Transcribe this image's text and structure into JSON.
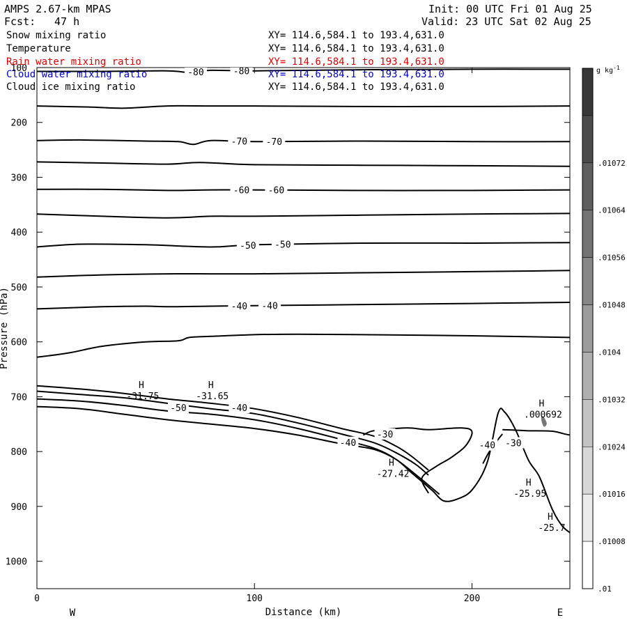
{
  "header": {
    "model": "AMPS 2.67-km MPAS",
    "forecast_label": "Fcst:",
    "forecast_value": "47 h",
    "init": "Init: 00 UTC Fri 01 Aug 25",
    "valid": "Valid: 23 UTC Sat 02 Aug 25"
  },
  "fields": [
    {
      "name": "Snow mixing ratio",
      "xy": "XY= 114.6,584.1 to 193.4,631.0",
      "color": "#000000"
    },
    {
      "name": "Temperature",
      "xy": "XY= 114.6,584.1 to 193.4,631.0",
      "color": "#000000"
    },
    {
      "name": "Rain water mixing ratio",
      "xy": "XY= 114.6,584.1 to 193.4,631.0",
      "color": "#dd0000"
    },
    {
      "name": "Cloud water mixing ratio",
      "xy": "XY= 114.6,584.1 to 193.4,631.0",
      "color": "#0000cc"
    },
    {
      "name": "Cloud ice mixing ratio",
      "xy": "XY= 114.6,584.1 to 193.4,631.0",
      "color": "#000000"
    }
  ],
  "chart_data": {
    "type": "line",
    "xlabel": "Distance (km)",
    "ylabel": "Pressure (hPa)",
    "xlim": [
      0,
      245
    ],
    "ylim": [
      1050,
      100
    ],
    "xticks": [
      0,
      100,
      200
    ],
    "yticks": [
      100,
      200,
      300,
      400,
      500,
      600,
      700,
      800,
      900,
      1000
    ],
    "direction_left": "W",
    "direction_right": "E",
    "isotherms": [
      {
        "label": "-80",
        "label_x": [
          73,
          94
        ],
        "points": [
          [
            0,
            107
          ],
          [
            30,
            107
          ],
          [
            60,
            106
          ],
          [
            70,
            109
          ],
          [
            80,
            105
          ],
          [
            100,
            106
          ],
          [
            150,
            104
          ],
          [
            200,
            103
          ],
          [
            245,
            103
          ]
        ]
      },
      {
        "label": "",
        "label_x": [],
        "points": [
          [
            0,
            170
          ],
          [
            25,
            172
          ],
          [
            40,
            174
          ],
          [
            60,
            170
          ],
          [
            80,
            170
          ],
          [
            100,
            170
          ],
          [
            150,
            171
          ],
          [
            200,
            171
          ],
          [
            245,
            170
          ]
        ]
      },
      {
        "label": "-70",
        "label_x": [
          93,
          109
        ],
        "points": [
          [
            0,
            233
          ],
          [
            20,
            232
          ],
          [
            50,
            234
          ],
          [
            65,
            235
          ],
          [
            72,
            240
          ],
          [
            80,
            233
          ],
          [
            100,
            235
          ],
          [
            150,
            234
          ],
          [
            200,
            235
          ],
          [
            245,
            235
          ]
        ]
      },
      {
        "label": "",
        "label_x": [],
        "points": [
          [
            0,
            272
          ],
          [
            30,
            274
          ],
          [
            60,
            276
          ],
          [
            75,
            273
          ],
          [
            100,
            277
          ],
          [
            150,
            278
          ],
          [
            200,
            279
          ],
          [
            245,
            280
          ]
        ]
      },
      {
        "label": "-60",
        "label_x": [
          94,
          110
        ],
        "points": [
          [
            0,
            322
          ],
          [
            30,
            322
          ],
          [
            60,
            324
          ],
          [
            80,
            323
          ],
          [
            100,
            323
          ],
          [
            150,
            324
          ],
          [
            200,
            324
          ],
          [
            245,
            323
          ]
        ]
      },
      {
        "label": "",
        "label_x": [],
        "points": [
          [
            0,
            367
          ],
          [
            30,
            371
          ],
          [
            60,
            374
          ],
          [
            80,
            371
          ],
          [
            100,
            371
          ],
          [
            150,
            369
          ],
          [
            200,
            367
          ],
          [
            245,
            366
          ]
        ]
      },
      {
        "label": "-50",
        "label_x": [
          97,
          113
        ],
        "points": [
          [
            0,
            427
          ],
          [
            20,
            422
          ],
          [
            50,
            423
          ],
          [
            80,
            427
          ],
          [
            100,
            423
          ],
          [
            150,
            420
          ],
          [
            200,
            420
          ],
          [
            245,
            419
          ]
        ]
      },
      {
        "label": "",
        "label_x": [],
        "points": [
          [
            0,
            482
          ],
          [
            30,
            478
          ],
          [
            60,
            476
          ],
          [
            80,
            476
          ],
          [
            100,
            476
          ],
          [
            150,
            474
          ],
          [
            200,
            472
          ],
          [
            245,
            470
          ]
        ]
      },
      {
        "label": "-40",
        "label_x": [
          93,
          107
        ],
        "points": [
          [
            0,
            540
          ],
          [
            30,
            536
          ],
          [
            50,
            535
          ],
          [
            60,
            536
          ],
          [
            80,
            535
          ],
          [
            100,
            534
          ],
          [
            150,
            532
          ],
          [
            200,
            530
          ],
          [
            245,
            528
          ]
        ]
      },
      {
        "label": "",
        "label_x": [],
        "points": [
          [
            0,
            628
          ],
          [
            15,
            620
          ],
          [
            30,
            608
          ],
          [
            50,
            600
          ],
          [
            65,
            598
          ],
          [
            70,
            592
          ],
          [
            80,
            590
          ],
          [
            100,
            587
          ],
          [
            120,
            586
          ],
          [
            150,
            587
          ],
          [
            200,
            589
          ],
          [
            245,
            592
          ]
        ]
      }
    ],
    "terrain_surface": [
      [
        0,
        718
      ],
      [
        20,
        722
      ],
      [
        40,
        732
      ],
      [
        60,
        742
      ],
      [
        80,
        750
      ],
      [
        100,
        758
      ],
      [
        120,
        770
      ],
      [
        140,
        786
      ],
      [
        155,
        796
      ],
      [
        165,
        814
      ],
      [
        172,
        838
      ],
      [
        178,
        858
      ],
      [
        182,
        872
      ],
      [
        187,
        890
      ],
      [
        193,
        887
      ],
      [
        200,
        870
      ],
      [
        207,
        820
      ],
      [
        212,
        730
      ],
      [
        215,
        728
      ],
      [
        220,
        760
      ],
      [
        226,
        816
      ],
      [
        231,
        846
      ],
      [
        237,
        906
      ],
      [
        242,
        938
      ],
      [
        248,
        955
      ],
      [
        250,
        958
      ]
    ],
    "near_surface_contours": [
      {
        "label": "-50",
        "points": [
          [
            0,
            680
          ],
          [
            20,
            686
          ],
          [
            40,
            694
          ],
          [
            60,
            704
          ],
          [
            80,
            712
          ],
          [
            100,
            722
          ],
          [
            120,
            738
          ],
          [
            140,
            758
          ],
          [
            155,
            772
          ],
          [
            165,
            790
          ],
          [
            172,
            808
          ],
          [
            180,
            834
          ]
        ]
      },
      {
        "label": "-40",
        "points": [
          [
            0,
            690
          ],
          [
            20,
            696
          ],
          [
            40,
            702
          ],
          [
            60,
            712
          ],
          [
            80,
            722
          ],
          [
            100,
            731
          ],
          [
            120,
            748
          ],
          [
            140,
            768
          ],
          [
            155,
            784
          ],
          [
            165,
            802
          ],
          [
            174,
            823
          ],
          [
            180,
            843
          ]
        ]
      },
      {
        "label": "",
        "points": [
          [
            0,
            704
          ],
          [
            20,
            708
          ],
          [
            40,
            716
          ],
          [
            60,
            726
          ],
          [
            80,
            732
          ],
          [
            100,
            742
          ],
          [
            120,
            758
          ],
          [
            140,
            778
          ],
          [
            155,
            794
          ],
          [
            165,
            814
          ],
          [
            176,
            848
          ],
          [
            185,
            878
          ]
        ]
      }
    ],
    "warm_contours": [
      {
        "label": "-30",
        "points": [
          [
            150,
            770
          ],
          [
            155,
            762
          ],
          [
            170,
            757
          ],
          [
            180,
            760
          ],
          [
            195,
            757
          ],
          [
            200,
            764
          ],
          [
            197,
            790
          ],
          [
            190,
            812
          ],
          [
            184,
            826
          ],
          [
            177,
            848
          ],
          [
            180,
            876
          ]
        ]
      },
      {
        "label": "-40",
        "points": [
          [
            205,
            822
          ],
          [
            208,
            800
          ],
          [
            212,
            778
          ],
          [
            214,
            768
          ]
        ]
      },
      {
        "label": "-30",
        "points": [
          [
            214,
            760
          ],
          [
            225,
            762
          ],
          [
            237,
            763
          ],
          [
            246,
            770
          ],
          [
            252,
            760
          ]
        ]
      }
    ],
    "annotations": [
      {
        "mark": "H",
        "value": "-31.75",
        "x": 48,
        "y": 684
      },
      {
        "mark": "H",
        "value": "-31.65",
        "x": 80,
        "y": 684
      },
      {
        "mark": "H",
        "value": "-27.42",
        "x": 163,
        "y": 826
      },
      {
        "mark": "H",
        "value": ".000692",
        "x": 232,
        "y": 718
      },
      {
        "mark": "H",
        "value": "-25.95",
        "x": 226,
        "y": 862
      },
      {
        "mark": "H",
        "value": "-25.7",
        "x": 236,
        "y": 924
      }
    ],
    "colorbar": {
      "unit": "g kg",
      "unit_exponent": "-1",
      "ticks": [
        ".01072",
        ".01064",
        ".01056",
        ".01048",
        ".0104",
        ".01032",
        ".01024",
        ".01016",
        ".01008",
        ".01"
      ],
      "levels": 11
    }
  }
}
